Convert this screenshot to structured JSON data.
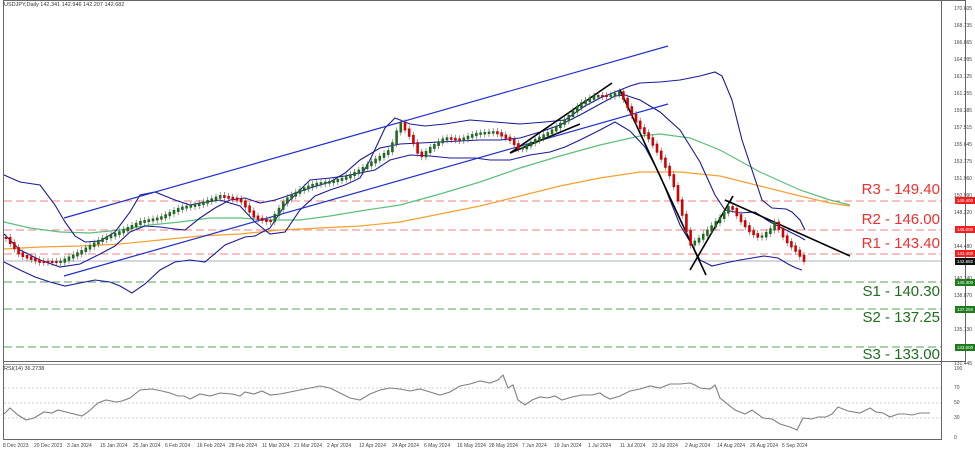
{
  "header": {
    "title": "USDJPY,Daily  142.341 142.946 142.207 142.682",
    "symbol": "USDJPY",
    "timeframe": "Daily",
    "ohlc": {
      "open": "142.341",
      "high": "142.946",
      "low": "142.207",
      "close": "142.682"
    }
  },
  "rsi_panel": {
    "title": "RSI(14) 36.2738",
    "indicator": "RSI(14)",
    "value": "36.2738",
    "y_ticks": [
      "100",
      "70",
      "50",
      "30",
      "0"
    ]
  },
  "price_axis": {
    "ticks": [
      "170.605",
      "168.735",
      "166.865",
      "164.995",
      "163.125",
      "161.255",
      "159.385",
      "157.515",
      "155.645",
      "153.775",
      "151.960",
      "150.090",
      "148.220",
      "146.350",
      "144.480",
      "142.682",
      "140.740",
      "138.870",
      "137.000",
      "135.130",
      "133.260",
      "131.445"
    ]
  },
  "levels": {
    "resistance": [
      {
        "label": "R3 - 149.40",
        "tag": "149.400",
        "price": 149.4
      },
      {
        "label": "R2 - 146.00",
        "tag": "146.000",
        "price": 146.0
      },
      {
        "label": "R1 - 143.40",
        "tag": "143.400",
        "price": 143.4
      }
    ],
    "support": [
      {
        "label": "S1 - 140.30",
        "tag": "140.300",
        "price": 140.3
      },
      {
        "label": "S2 - 137.25",
        "tag": "137.250",
        "price": 137.25
      },
      {
        "label": "S3 - 133.00",
        "tag": "133.000",
        "price": 133.0
      }
    ],
    "current_price_tag": "142.682"
  },
  "x_axis": {
    "labels": [
      "8 Dec 2023",
      "20 Dec 2023",
      "3 Jan 2024",
      "15 Jan 2024",
      "25 Jan 2024",
      "6 Feb 2024",
      "16 Feb 2024",
      "28 Feb 2024",
      "11 Mar 2024",
      "21 Mar 2024",
      "2 Apr 2024",
      "12 Apr 2024",
      "24 Apr 2024",
      "6 May 2024",
      "16 May 2024",
      "28 May 2024",
      "7 Jun 2024",
      "19 Jun 2024",
      "1 Jul 2024",
      "11 Jul 2024",
      "23 Jul 2024",
      "2 Aug 2024",
      "14 Aug 2024",
      "26 Aug 2024",
      "5 Sep 2024"
    ]
  },
  "colors": {
    "bull_candle": "#1e6b1e",
    "bear_candle": "#d40000",
    "bollinger": "#1a1a9a",
    "channel": "#1f2fd0",
    "ma_green": "#5cbf7a",
    "ma_orange": "#f5a030",
    "resistance": "#f03030",
    "support": "#2e8b2e",
    "trendline": "#000000",
    "rsi_line": "#808080"
  },
  "chart_data": [
    {
      "type": "candlestick",
      "title": "USDJPY, Daily",
      "xlabel": "",
      "ylabel": "Price",
      "ylim": [
        131.445,
        170.605
      ],
      "x": [
        "8 Dec 2023",
        "20 Dec 2023",
        "3 Jan 2024",
        "15 Jan 2024",
        "25 Jan 2024",
        "6 Feb 2024",
        "16 Feb 2024",
        "28 Feb 2024",
        "11 Mar 2024",
        "21 Mar 2024",
        "2 Apr 2024",
        "12 Apr 2024",
        "24 Apr 2024",
        "6 May 2024",
        "16 May 2024",
        "28 May 2024",
        "7 Jun 2024",
        "19 Jun 2024",
        "1 Jul 2024",
        "11 Jul 2024",
        "23 Jul 2024",
        "2 Aug 2024",
        "14 Aug 2024",
        "26 Aug 2024",
        "5 Sep 2024"
      ],
      "series": [
        {
          "name": "Close (approx.)",
          "values": [
            144.8,
            142.3,
            144.6,
            147.8,
            148.1,
            149.2,
            150.1,
            149.9,
            147.0,
            151.4,
            151.6,
            153.2,
            155.0,
            153.9,
            155.4,
            157.0,
            156.8,
            158.9,
            161.3,
            158.0,
            154.5,
            146.6,
            147.2,
            144.5,
            142.7
          ]
        },
        {
          "name": "Last OHLC",
          "values": [
            142.341,
            142.946,
            142.207,
            142.682
          ]
        }
      ],
      "annotations": [
        "R3 - 149.40",
        "R2 - 146.00",
        "R1 - 143.40",
        "S1 - 140.30",
        "S2 - 137.25",
        "S3 - 133.00"
      ],
      "overlays": [
        "Bollinger Bands",
        "Moving average (green)",
        "Moving average (orange)",
        "Upward channel",
        "Trendlines"
      ],
      "grid": false
    },
    {
      "type": "line",
      "title": "RSI(14) 36.2738",
      "ylim": [
        0,
        100
      ],
      "y_ticks": [
        0,
        30,
        50,
        70,
        100
      ],
      "x": [
        "8 Dec 2023",
        "20 Dec 2023",
        "3 Jan 2024",
        "15 Jan 2024",
        "25 Jan 2024",
        "6 Feb 2024",
        "16 Feb 2024",
        "28 Feb 2024",
        "11 Mar 2024",
        "21 Mar 2024",
        "2 Apr 2024",
        "12 Apr 2024",
        "24 Apr 2024",
        "6 May 2024",
        "16 May 2024",
        "28 May 2024",
        "7 Jun 2024",
        "19 Jun 2024",
        "1 Jul 2024",
        "11 Jul 2024",
        "23 Jul 2024",
        "2 Aug 2024",
        "14 Aug 2024",
        "26 Aug 2024",
        "5 Sep 2024"
      ],
      "values": [
        38,
        31,
        55,
        68,
        60,
        70,
        62,
        58,
        44,
        60,
        62,
        66,
        82,
        48,
        58,
        60,
        61,
        72,
        78,
        44,
        30,
        16,
        38,
        44,
        36.27
      ]
    }
  ]
}
